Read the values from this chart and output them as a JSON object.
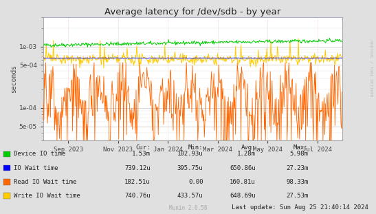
{
  "title": "Average latency for /dev/sdb - by year",
  "ylabel": "seconds",
  "bg_color": "#e0e0e0",
  "plot_bg_color": "#ffffff",
  "x_tick_labels": [
    "Sep 2023",
    "Nov 2023",
    "Jan 2024",
    "Mar 2024",
    "May 2024",
    "Jul 2024"
  ],
  "series": {
    "device_io": {
      "color": "#00cc00",
      "label": "Device IO time"
    },
    "io_wait": {
      "color": "#0000ff",
      "label": "IO Wait time"
    },
    "read_io": {
      "color": "#ff6600",
      "label": "Read IO Wait time"
    },
    "write_io": {
      "color": "#ffcc00",
      "label": "Write IO Wait time"
    }
  },
  "legend_items": [
    {
      "label": "Device IO time",
      "color": "#00cc00"
    },
    {
      "label": "IO Wait time",
      "color": "#0000ff"
    },
    {
      "label": "Read IO Wait time",
      "color": "#ff6600"
    },
    {
      "label": "Write IO Wait time",
      "color": "#ffcc00"
    }
  ],
  "table_headers": [
    "Cur:",
    "Min:",
    "Avg:",
    "Max:"
  ],
  "table_rows": [
    [
      "1.53m",
      "102.93u",
      "1.28m",
      "5.98m"
    ],
    [
      "739.12u",
      "395.75u",
      "650.86u",
      "27.23m"
    ],
    [
      "182.51u",
      "0.00",
      "160.81u",
      "98.33m"
    ],
    [
      "740.76u",
      "433.57u",
      "648.69u",
      "27.53m"
    ]
  ],
  "last_update": "Last update: Sun Aug 25 21:40:14 2024",
  "munin_version": "Munin 2.0.56",
  "rrdtool_label": "RRDTOOL / TOBI OETIKER",
  "n_points": 500
}
